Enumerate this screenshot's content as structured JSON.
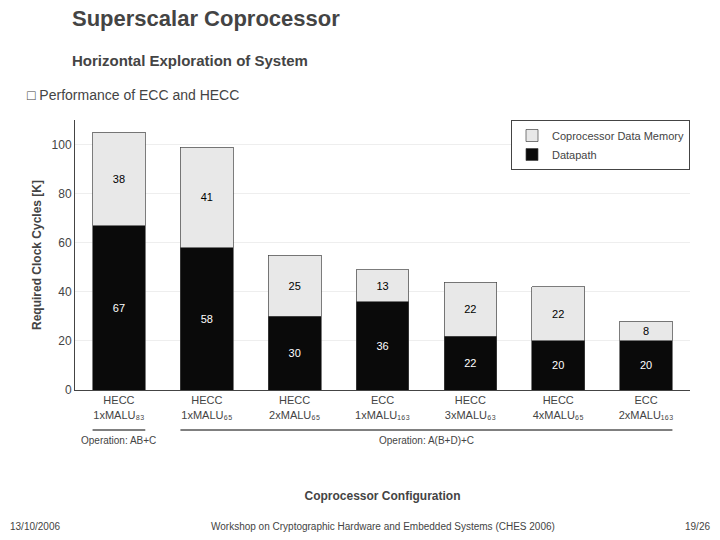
{
  "chart_data": {
    "type": "bar",
    "title": "Superscalar Coprocessor",
    "subtitle": "Horizontal Exploration of System",
    "annotations": [
      "□ Performance of ECC and HECC",
      "13/10/2006",
      "Workshop on Cryptographic Hardware and Embedded Systems (CHES 2006)",
      "19/26"
    ],
    "xlabel": "Coprocessor Configuration",
    "ylabel": "Required Clock Cycles [K]",
    "categories": [
      "HECC 1xMALU₈₃",
      "HECC 1xMALU₆₅",
      "HECC 2xMALU₆₅",
      "ECC 1xMALU₁₆₃",
      "HECC 3xMALU₆₃",
      "HECC 4xMALU₆₅",
      "ECC 2xMALU₁₆₃"
    ],
    "groups": [
      {
        "label": "Operation: AB+C",
        "count": 1
      },
      {
        "label": "Operation: A(B+D)+C",
        "count": 6
      }
    ],
    "series": [
      {
        "name": "Datapath",
        "color": "#0A0A0A",
        "values": [
          67,
          58,
          30,
          36,
          22,
          20,
          20
        ]
      },
      {
        "name": "Coprocessor Data Memory",
        "color": "#E8E8E8",
        "values": [
          38,
          41,
          25,
          13,
          22,
          22,
          8
        ]
      }
    ],
    "stacked": true,
    "data_labels": true,
    "ylim": [
      0,
      110
    ],
    "yticks": [
      0,
      20,
      40,
      60,
      80,
      100
    ],
    "grid": true,
    "legend": "upper right"
  }
}
